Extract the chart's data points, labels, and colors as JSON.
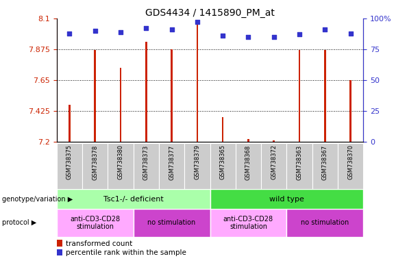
{
  "title": "GDS4434 / 1415890_PM_at",
  "samples": [
    "GSM738375",
    "GSM738378",
    "GSM738380",
    "GSM738373",
    "GSM738377",
    "GSM738379",
    "GSM738365",
    "GSM738368",
    "GSM738372",
    "GSM738363",
    "GSM738367",
    "GSM738370"
  ],
  "bar_values": [
    7.47,
    7.87,
    7.74,
    7.93,
    7.875,
    8.06,
    7.38,
    7.22,
    7.21,
    7.87,
    7.87,
    7.65
  ],
  "percentile_values": [
    88,
    90,
    89,
    92,
    91,
    97,
    86,
    85,
    85,
    87,
    91,
    88
  ],
  "ymin": 7.2,
  "ymax": 8.1,
  "yticks": [
    7.2,
    7.425,
    7.65,
    7.875,
    8.1
  ],
  "ytick_labels": [
    "7.2",
    "7.425",
    "7.65",
    "7.875",
    "8.1"
  ],
  "right_yticks": [
    0,
    25,
    50,
    75,
    100
  ],
  "right_ytick_labels": [
    "0",
    "25",
    "50",
    "75",
    "100%"
  ],
  "bar_color": "#CC2200",
  "dot_color": "#3333CC",
  "genotype_groups": [
    {
      "label": "Tsc1-/- deficient",
      "start": 0,
      "end": 6,
      "color": "#AAFFAA"
    },
    {
      "label": "wild type",
      "start": 6,
      "end": 12,
      "color": "#44DD44"
    }
  ],
  "protocol_groups": [
    {
      "label": "anti-CD3-CD28\nstimulation",
      "start": 0,
      "end": 3,
      "color": "#FFAAFF"
    },
    {
      "label": "no stimulation",
      "start": 3,
      "end": 6,
      "color": "#CC44CC"
    },
    {
      "label": "anti-CD3-CD28\nstimulation",
      "start": 6,
      "end": 9,
      "color": "#FFAAFF"
    },
    {
      "label": "no stimulation",
      "start": 9,
      "end": 12,
      "color": "#CC44CC"
    }
  ],
  "legend_items": [
    {
      "label": "transformed count",
      "color": "#CC2200"
    },
    {
      "label": "percentile rank within the sample",
      "color": "#3333CC"
    }
  ],
  "left_label_genotype": "genotype/variation",
  "left_label_protocol": "protocol",
  "bg_color": "#FFFFFF",
  "bar_width": 0.07
}
